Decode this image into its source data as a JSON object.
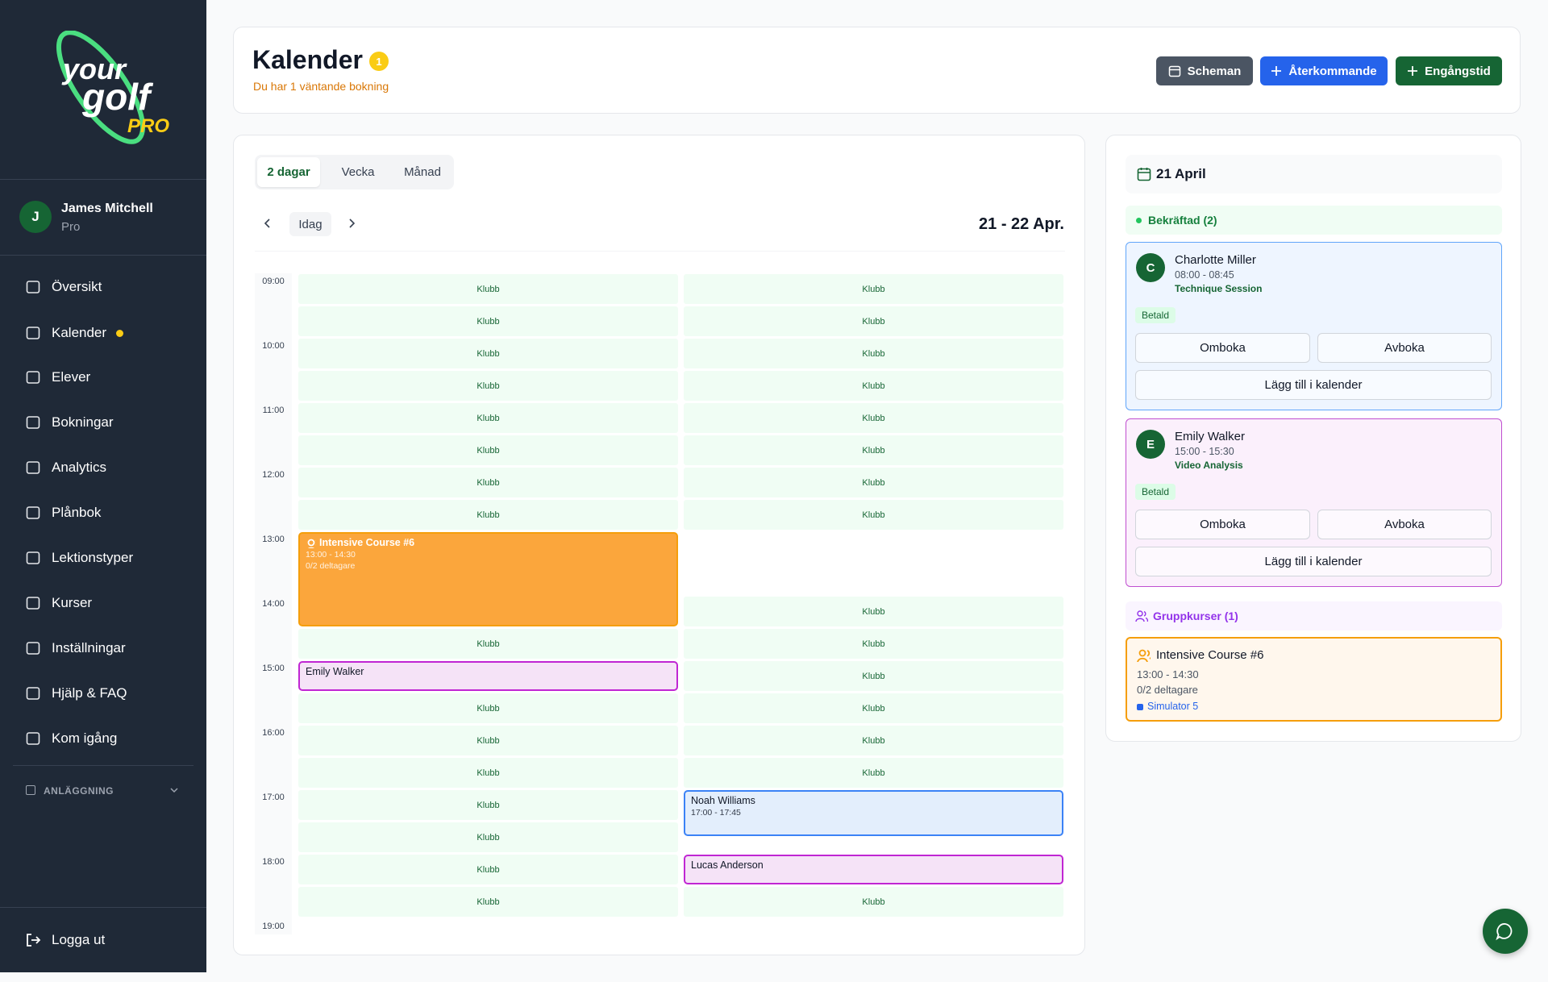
{
  "logo": {
    "line1": "your",
    "line2": "golf",
    "badge": "PRO"
  },
  "sidebar": {
    "user": {
      "initial": "J",
      "name": "James Mitchell",
      "role": "Pro"
    },
    "nav": [
      "Översikt",
      "Kalender",
      "Elever",
      "Bokningar",
      "Analytics",
      "Plånbok",
      "Lektionstyper",
      "Kurser",
      "Inställningar",
      "Hjälp & FAQ",
      "Kom igång"
    ],
    "section": "ANLÄGGNING",
    "logout": "Logga ut"
  },
  "header": {
    "title": "Kalender",
    "badge": "1",
    "subtitle": "Du har 1 väntande bokning",
    "buttons": [
      "Scheman",
      "Återkommande",
      "Engångstid"
    ]
  },
  "calendar": {
    "views": [
      "2 dagar",
      "Vecka",
      "Månad"
    ],
    "today": "Idag",
    "range": "21 - 22 Apr.",
    "hours": [
      "09:00",
      "10:00",
      "11:00",
      "12:00",
      "13:00",
      "14:00",
      "15:00",
      "16:00",
      "17:00",
      "18:00",
      "19:00"
    ],
    "days": [
      {
        "slots": [
          "Klubb",
          "Klubb",
          "Klubb",
          "Klubb",
          "Klubb",
          "Klubb",
          "Klubb",
          "Klubb",
          {
            "name": "Intensive Course #6",
            "time": "13:00 - 14:30",
            "participants": "0/2 deltagare",
            "color": "#fba63c",
            "border": "#f59e0b",
            "text": "#ffffff"
          },
          null,
          null,
          "Klubb",
          {
            "name": "Emily Walker",
            "color": "#f5e3f7",
            "border": "#c026d3",
            "text": "#111827"
          },
          "Klubb",
          "Klubb",
          "Klubb",
          "Klubb",
          "Klubb",
          "Klubb",
          "Klubb"
        ]
      },
      {
        "slots": [
          "Klubb",
          "Klubb",
          "Klubb",
          "Klubb",
          "Klubb",
          "Klubb",
          "Klubb",
          "Klubb",
          null,
          null,
          "Klubb",
          "Klubb",
          "Klubb",
          "Klubb",
          "Klubb",
          "Klubb",
          {
            "name": "Noah Williams",
            "time": "17:00 - 17:45",
            "color": "#e3eefc",
            "border": "#3b82f6",
            "text": "#111827"
          },
          null,
          {
            "name": "Lucas Anderson",
            "color": "#f5e3f7",
            "border": "#c026d3",
            "text": "#111827"
          },
          "Klubb"
        ]
      }
    ]
  },
  "day_panel": {
    "date": "21 April",
    "confirmed": "Bekräftad (2)",
    "bookings": [
      {
        "initial": "C",
        "name": "Charlotte Miller",
        "time": "08:00 - 08:45",
        "type": "Technique Session",
        "status": "Betald",
        "actions": [
          "Omboka",
          "Avboka",
          "Lägg till i kalender"
        ],
        "color": "#eef5ff",
        "border": "#60a5fa"
      },
      {
        "initial": "E",
        "name": "Emily Walker",
        "time": "15:00 - 15:30",
        "type": "Video Analysis",
        "status": "Betald",
        "actions": [
          "Omboka",
          "Avboka",
          "Lägg till i kalender"
        ],
        "color": "#fbf0fc",
        "border": "#c04fd0"
      }
    ],
    "group": "Gruppkurser (1)",
    "courses": [
      {
        "name": "Intensive Course #6",
        "time": "13:00 - 14:30",
        "participants": "0/2 deltagare",
        "location": "Simulator 5"
      }
    ]
  }
}
